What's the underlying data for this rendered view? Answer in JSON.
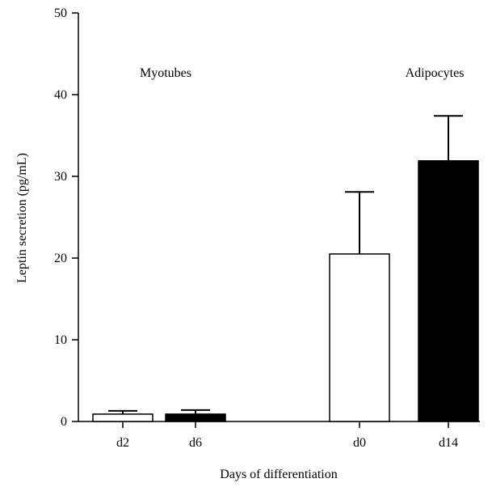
{
  "chart_data": {
    "type": "bar",
    "categories": [
      "d2",
      "d6",
      "d0",
      "d14"
    ],
    "values": [
      0.9,
      0.9,
      20.5,
      31.9
    ],
    "error_upper": [
      1.3,
      1.4,
      28.1,
      37.4
    ],
    "bar_colors": [
      "#ffffff",
      "#000000",
      "#ffffff",
      "#000000"
    ],
    "groups": [
      {
        "label": "Myotubes",
        "categories": [
          "d2",
          "d6"
        ]
      },
      {
        "label": "Adipocytes",
        "categories": [
          "d0",
          "d14"
        ]
      }
    ],
    "xlabel": "Days of differentiation",
    "ylabel": "Leptin secretion (pg/mL)",
    "ylim": [
      0,
      50
    ],
    "yticks": [
      0,
      10,
      20,
      30,
      40,
      50
    ],
    "grid": false
  },
  "colors": {
    "axis": "#000000",
    "background": "#ffffff"
  }
}
